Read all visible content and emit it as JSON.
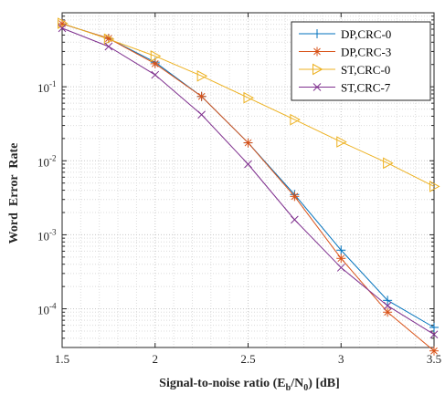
{
  "chart_data": {
    "type": "line",
    "title": "",
    "xlabel": "Signal-to-noise ratio (E_b/N_0) [dB]",
    "xlabel_parts": {
      "prefix": "Signal-to-noise ratio (E",
      "sub1": "b",
      "mid": "/N",
      "sub2": "0",
      "suffix": ") [dB]"
    },
    "ylabel": "Word  Error  Rate",
    "xlim": [
      1.5,
      3.5
    ],
    "ylim": [
      3e-05,
      1
    ],
    "yscale": "log",
    "grid": "major and minor (dotted)",
    "legend_position": "top-right",
    "x_ticks": [
      {
        "value": 1.5,
        "label": "1.5"
      },
      {
        "value": 2,
        "label": "2"
      },
      {
        "value": 2.5,
        "label": "2.5"
      },
      {
        "value": 3,
        "label": "3"
      },
      {
        "value": 3.5,
        "label": "3.5"
      }
    ],
    "y_ticks": [
      {
        "exp": -1,
        "base": "10",
        "sup": "-1"
      },
      {
        "exp": -2,
        "base": "10",
        "sup": "-2"
      },
      {
        "exp": -3,
        "base": "10",
        "sup": "-3"
      },
      {
        "exp": -4,
        "base": "10",
        "sup": "-4"
      }
    ],
    "x": [
      1.5,
      1.75,
      2.0,
      2.25,
      2.5,
      2.75,
      3.0,
      3.25,
      3.5
    ],
    "series": [
      {
        "name": "DP,CRC-0",
        "color": "#0072BD",
        "marker": "plus",
        "values": [
          0.71,
          0.45,
          0.215,
          0.074,
          0.0175,
          0.0035,
          0.00062,
          0.00013,
          5.6e-05
        ]
      },
      {
        "name": "DP,CRC-3",
        "color": "#D95319",
        "marker": "asterisk",
        "values": [
          0.71,
          0.45,
          0.205,
          0.074,
          0.0175,
          0.0033,
          0.00048,
          9e-05,
          2.7e-05
        ]
      },
      {
        "name": "ST,CRC-0",
        "color": "#EDB120",
        "marker": "triangle-right",
        "values": [
          0.72,
          0.44,
          0.26,
          0.14,
          0.071,
          0.036,
          0.018,
          0.0093,
          0.0045
        ]
      },
      {
        "name": "ST,CRC-7",
        "color": "#7E2F8E",
        "marker": "x",
        "values": [
          0.62,
          0.35,
          0.145,
          0.042,
          0.009,
          0.0016,
          0.00036,
          0.00011,
          4.5e-05
        ]
      }
    ]
  }
}
